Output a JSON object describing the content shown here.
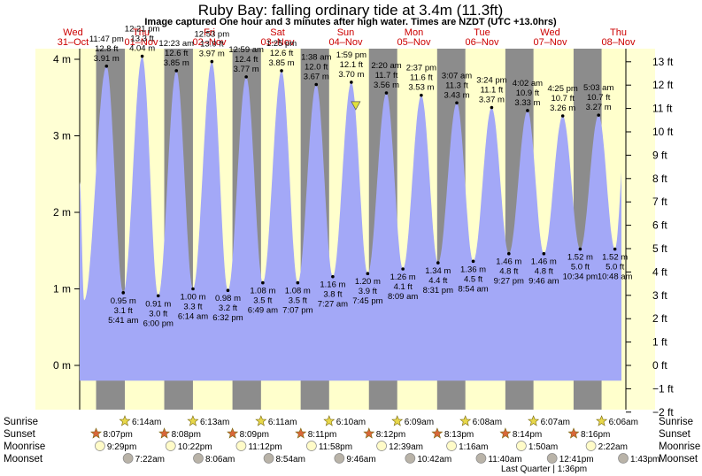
{
  "chart_data": {
    "type": "area",
    "title": "Ruby Bay: falling  ordinary tide at 3.4m (11.3ft)",
    "subtitle": "Image captured One hour and 3 minutes after high water. Times are NZDT (UTC +13.0hrs)",
    "left_axis": {
      "unit": "m",
      "ticks": [
        "0 m",
        "1 m",
        "2 m",
        "3 m",
        "4 m"
      ],
      "values": [
        0,
        1,
        2,
        3,
        4
      ]
    },
    "right_axis": {
      "unit": "ft",
      "ticks": [
        "−2 ft",
        "−1 ft",
        "0 ft",
        "1 ft",
        "2 ft",
        "3 ft",
        "4 ft",
        "5 ft",
        "6 ft",
        "7 ft",
        "8 ft",
        "9 ft",
        "10 ft",
        "11 ft",
        "12 ft",
        "13 ft"
      ],
      "values": [
        -2,
        -1,
        0,
        1,
        2,
        3,
        4,
        5,
        6,
        7,
        8,
        9,
        10,
        11,
        12,
        13
      ]
    },
    "days": [
      {
        "name": "Wed",
        "date": "31–Oct"
      },
      {
        "name": "Thu",
        "date": "01–Nov"
      },
      {
        "name": "Fri",
        "date": "02–Nov"
      },
      {
        "name": "Sat",
        "date": "03–Nov"
      },
      {
        "name": "Sun",
        "date": "04–Nov"
      },
      {
        "name": "Mon",
        "date": "05–Nov"
      },
      {
        "name": "Tue",
        "date": "06–Nov"
      },
      {
        "name": "Wed",
        "date": "07–Nov"
      },
      {
        "name": "Thu",
        "date": "08–Nov"
      }
    ],
    "tides": [
      {
        "type": "high",
        "time": "11:47 pm",
        "m": "3.91 m",
        "ft": "12.8 ft",
        "value": 3.91
      },
      {
        "type": "low",
        "time": "5:41 am",
        "m": "0.95 m",
        "ft": "3.1 ft",
        "value": 0.95
      },
      {
        "type": "high",
        "time": "12:21 pm",
        "m": "4.04 m",
        "ft": "13.3 ft",
        "value": 4.04
      },
      {
        "type": "low",
        "time": "6:00 pm",
        "m": "0.91 m",
        "ft": "3.0 ft",
        "value": 0.91
      },
      {
        "type": "high",
        "time": "12:23 am",
        "m": "3.85 m",
        "ft": "12.6 ft",
        "value": 3.85
      },
      {
        "type": "low",
        "time": "6:14 am",
        "m": "1.00 m",
        "ft": "3.3 ft",
        "value": 1.0
      },
      {
        "type": "high",
        "time": "12:53 pm",
        "m": "3.97 m",
        "ft": "13.0 ft",
        "value": 3.97
      },
      {
        "type": "low",
        "time": "6:32 pm",
        "m": "0.98 m",
        "ft": "3.2 ft",
        "value": 0.98
      },
      {
        "type": "high",
        "time": "12:59 am",
        "m": "3.77 m",
        "ft": "12.4 ft",
        "value": 3.77
      },
      {
        "type": "low",
        "time": "6:49 am",
        "m": "1.08 m",
        "ft": "3.5 ft",
        "value": 1.08
      },
      {
        "type": "high",
        "time": "1:25 pm",
        "m": "3.85 m",
        "ft": "12.6 ft",
        "value": 3.85
      },
      {
        "type": "low",
        "time": "7:07 pm",
        "m": "1.08 m",
        "ft": "3.5 ft",
        "value": 1.08
      },
      {
        "type": "high",
        "time": "1:38 am",
        "m": "3.67 m",
        "ft": "12.0 ft",
        "value": 3.67
      },
      {
        "type": "low",
        "time": "7:27 am",
        "m": "1.16 m",
        "ft": "3.8 ft",
        "value": 1.16
      },
      {
        "type": "high",
        "time": "1:59 pm",
        "m": "3.70 m",
        "ft": "12.1 ft",
        "value": 3.7
      },
      {
        "type": "low",
        "time": "7:45 pm",
        "m": "1.20 m",
        "ft": "3.9 ft",
        "value": 1.2
      },
      {
        "type": "high",
        "time": "2:20 am",
        "m": "3.56 m",
        "ft": "11.7 ft",
        "value": 3.56
      },
      {
        "type": "low",
        "time": "8:09 am",
        "m": "1.26 m",
        "ft": "4.1 ft",
        "value": 1.26
      },
      {
        "type": "high",
        "time": "2:37 pm",
        "m": "3.53 m",
        "ft": "11.6 ft",
        "value": 3.53
      },
      {
        "type": "low",
        "time": "8:31 pm",
        "m": "1.34 m",
        "ft": "4.4 ft",
        "value": 1.34
      },
      {
        "type": "high",
        "time": "3:07 am",
        "m": "3.43 m",
        "ft": "11.3 ft",
        "value": 3.43
      },
      {
        "type": "low",
        "time": "8:54 am",
        "m": "1.36 m",
        "ft": "4.5 ft",
        "value": 1.36
      },
      {
        "type": "high",
        "time": "3:24 pm",
        "m": "3.37 m",
        "ft": "11.1 ft",
        "value": 3.37
      },
      {
        "type": "low",
        "time": "9:27 pm",
        "m": "1.46 m",
        "ft": "4.8 ft",
        "value": 1.46
      },
      {
        "type": "high",
        "time": "4:02 am",
        "m": "3.33 m",
        "ft": "10.9 ft",
        "value": 3.33
      },
      {
        "type": "low",
        "time": "9:46 am",
        "m": "1.46 m",
        "ft": "4.8 ft",
        "value": 1.46
      },
      {
        "type": "high",
        "time": "4:25 pm",
        "m": "3.26 m",
        "ft": "10.7 ft",
        "value": 3.26
      },
      {
        "type": "low",
        "time": "10:34 pm",
        "m": "1.52 m",
        "ft": "5.0 ft",
        "value": 1.52
      },
      {
        "type": "high",
        "time": "5:03 am",
        "m": "3.27 m",
        "ft": "10.7 ft",
        "value": 3.27
      },
      {
        "type": "low",
        "time": "10:48 am",
        "m": "1.52 m",
        "ft": "5.0 ft",
        "value": 1.52
      }
    ],
    "current": {
      "value": 3.4
    },
    "rows": {
      "sunrise": {
        "label": "Sunrise",
        "times": [
          "6:14am",
          "6:13am",
          "6:11am",
          "6:10am",
          "6:09am",
          "6:08am",
          "6:07am",
          "6:06am"
        ]
      },
      "sunset": {
        "label": "Sunset",
        "times": [
          "8:07pm",
          "8:08pm",
          "8:09pm",
          "8:11pm",
          "8:12pm",
          "8:13pm",
          "8:14pm",
          "8:16pm"
        ]
      },
      "moonrise": {
        "label": "Moonrise",
        "times": [
          "9:29pm",
          "10:22pm",
          "11:12pm",
          "11:58pm",
          "12:39am",
          "1:16am",
          "1:50am",
          "2:22am"
        ]
      },
      "moonset": {
        "label": "Moonset",
        "times": [
          "7:22am",
          "8:06am",
          "8:54am",
          "9:46am",
          "10:42am",
          "11:40am",
          "12:41pm",
          "1:43pm"
        ]
      }
    },
    "moon_phase": "Last Quarter | 1:36pm",
    "colors": {
      "water": "#a3a8f7",
      "day": "#ffffcc",
      "night": "#8c8c8c",
      "axis_bg": "#ffffd4",
      "day_label": "#cc0000"
    }
  }
}
